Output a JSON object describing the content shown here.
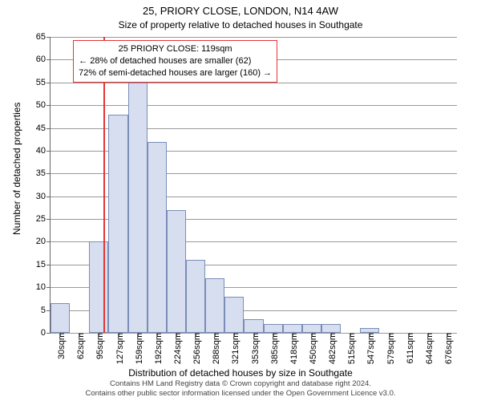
{
  "header": {
    "title_line1": "25, PRIORY CLOSE, LONDON, N14 4AW",
    "subtitle": "Size of property relative to detached houses in Southgate"
  },
  "axes": {
    "ylabel": "Number of detached properties",
    "xlabel": "Distribution of detached houses by size in Southgate",
    "ylim": [
      0,
      65
    ],
    "ytick_step": 5,
    "yticks": [
      0,
      5,
      10,
      15,
      20,
      25,
      30,
      35,
      40,
      45,
      50,
      55,
      60,
      65
    ],
    "xtick_labels": [
      "30sqm",
      "62sqm",
      "95sqm",
      "127sqm",
      "159sqm",
      "192sqm",
      "224sqm",
      "256sqm",
      "288sqm",
      "321sqm",
      "353sqm",
      "385sqm",
      "418sqm",
      "450sqm",
      "482sqm",
      "515sqm",
      "547sqm",
      "579sqm",
      "611sqm",
      "644sqm",
      "676sqm"
    ]
  },
  "bars": {
    "type": "histogram",
    "fill": "#d7def0",
    "stroke": "#7a8db8",
    "values": [
      6.5,
      0,
      20,
      48,
      55,
      42,
      27,
      16,
      12,
      8,
      3,
      2,
      2,
      2,
      2,
      0,
      1,
      0,
      0,
      0,
      0
    ]
  },
  "reference": {
    "x_label_index_after": 3,
    "frac_within_bin": 0.75,
    "callout_line1": "25 PRIORY CLOSE: 119sqm",
    "callout_line2": "← 28% of detached houses are smaller (62)",
    "callout_line3": "72% of semi-detached houses are larger (160) →"
  },
  "attribution": {
    "line1": "Contains HM Land Registry data © Crown copyright and database right 2024.",
    "line2": "Contains other public sector information licensed under the Open Government Licence v3.0."
  },
  "style": {
    "grid_color": "#999999",
    "callout_border": "#e43535",
    "refline_color": "#e43535",
    "title_fontsize": 13,
    "subtitle_fontsize": 12,
    "tick_fontsize": 11
  }
}
